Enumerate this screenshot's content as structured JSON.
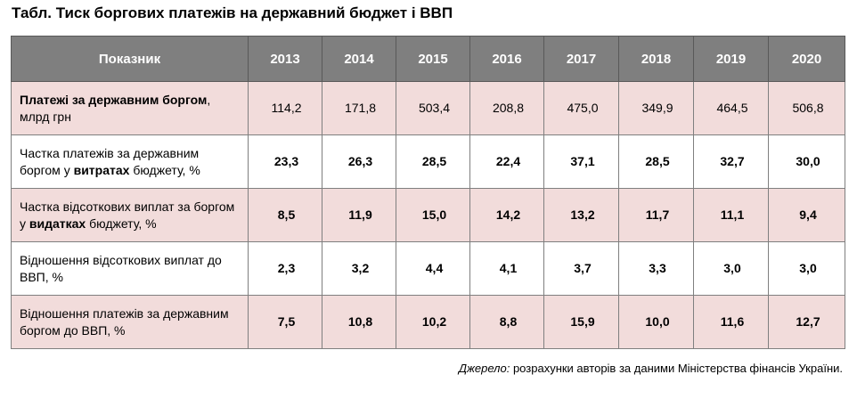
{
  "title": "Табл. Тиск боргових платежів на державний бюджет і ВВП",
  "table": {
    "header": {
      "indicator": "Показник",
      "years": [
        "2013",
        "2014",
        "2015",
        "2016",
        "2017",
        "2018",
        "2019",
        "2020"
      ]
    },
    "rows": [
      {
        "label_parts": [
          {
            "text": "Платежі за державним боргом",
            "bold": true
          },
          {
            "text": ", млрд грн",
            "bold": false
          }
        ],
        "values": [
          "114,2",
          "171,8",
          "503,4",
          "208,8",
          "475,0",
          "349,9",
          "464,5",
          "506,8"
        ],
        "values_bold": false,
        "shade": "pink"
      },
      {
        "label_parts": [
          {
            "text": "Частка платежів за державним боргом у ",
            "bold": false
          },
          {
            "text": "витратах",
            "bold": true
          },
          {
            "text": " бюджету, %",
            "bold": false
          }
        ],
        "values": [
          "23,3",
          "26,3",
          "28,5",
          "22,4",
          "37,1",
          "28,5",
          "32,7",
          "30,0"
        ],
        "values_bold": true,
        "shade": "white"
      },
      {
        "label_parts": [
          {
            "text": "Частка відсоткових виплат за боргом у ",
            "bold": false
          },
          {
            "text": "видатках",
            "bold": true
          },
          {
            "text": " бюджету, %",
            "bold": false
          }
        ],
        "values": [
          "8,5",
          "11,9",
          "15,0",
          "14,2",
          "13,2",
          "11,7",
          "11,1",
          "9,4"
        ],
        "values_bold": true,
        "shade": "pink"
      },
      {
        "label_parts": [
          {
            "text": "Відношення відсоткових виплат до ВВП, %",
            "bold": false
          }
        ],
        "values": [
          "2,3",
          "3,2",
          "4,4",
          "4,1",
          "3,7",
          "3,3",
          "3,0",
          "3,0"
        ],
        "values_bold": true,
        "shade": "white"
      },
      {
        "label_parts": [
          {
            "text": "Відношення платежів за державним боргом до ВВП, %",
            "bold": false
          }
        ],
        "values": [
          "7,5",
          "10,8",
          "10,2",
          "8,8",
          "15,9",
          "10,0",
          "11,6",
          "12,7"
        ],
        "values_bold": true,
        "shade": "pink"
      }
    ]
  },
  "source": {
    "label": "Джерело:",
    "text": " розрахунки авторів за даними Міністерства фінансів України."
  },
  "colors": {
    "header_bg": "#7f7f7f",
    "header_text": "#ffffff",
    "row_pink": "#f2dcdb",
    "row_white": "#ffffff",
    "border": "#7f7f7f"
  }
}
